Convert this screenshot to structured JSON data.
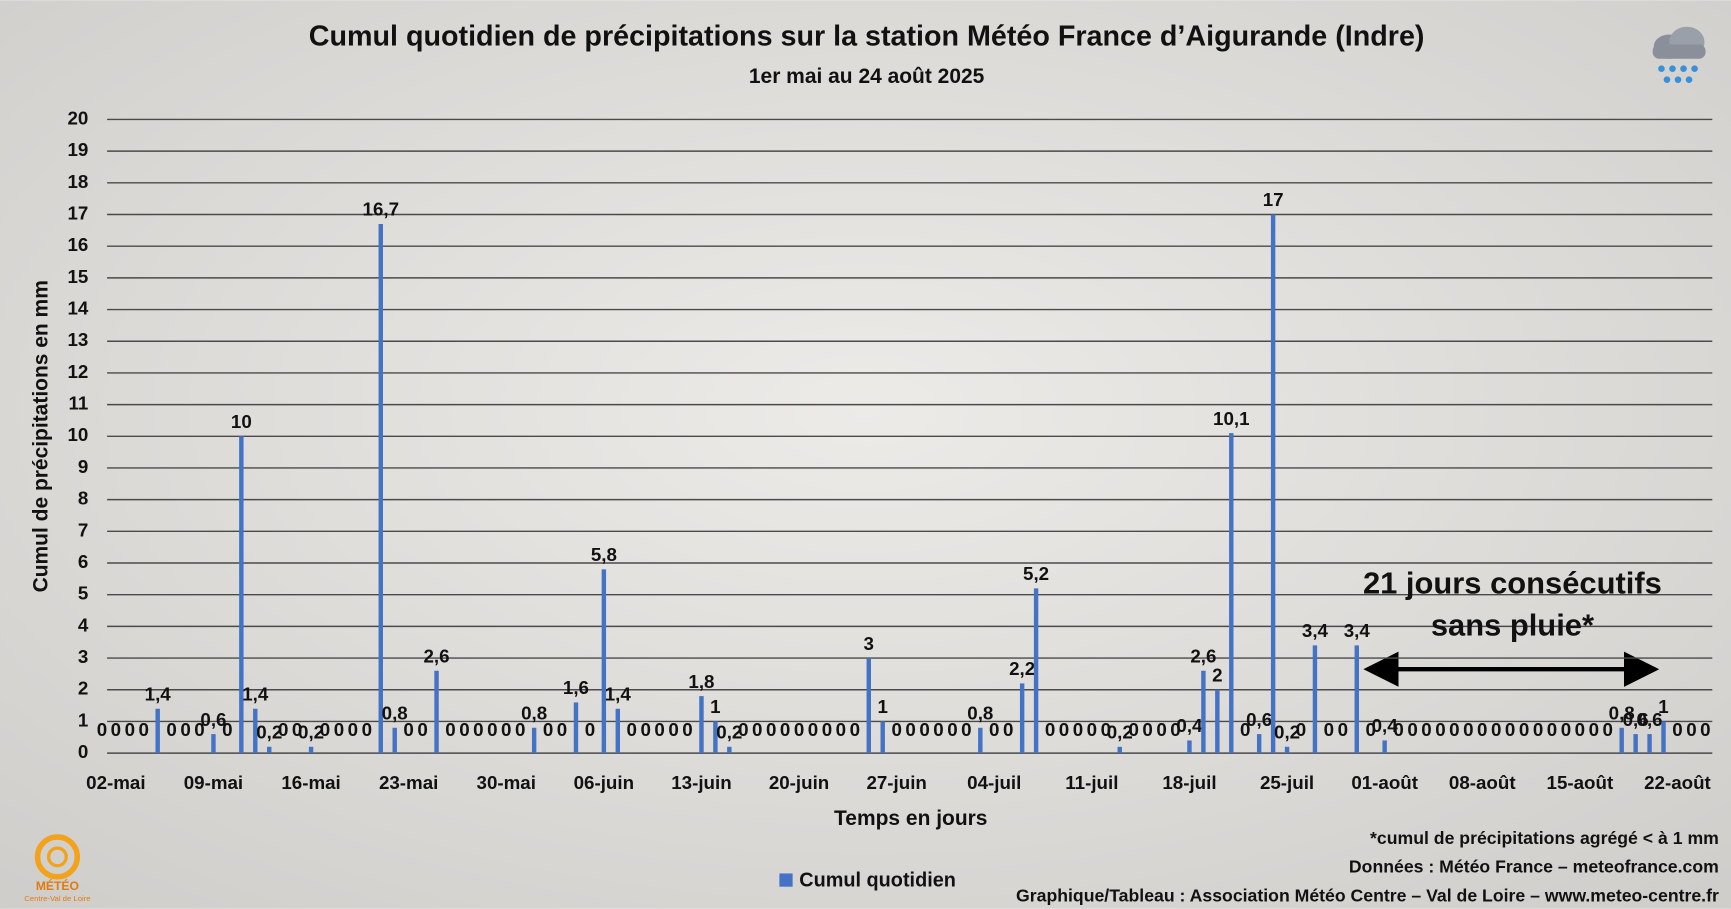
{
  "chart_data": {
    "type": "bar",
    "title": "Cumul quotidien de précipitations sur la station Météo France d’Aigurande (Indre)",
    "subtitle": "1er mai au 24 août 2025",
    "xlabel": "Temps en jours",
    "ylabel": "Cumul de précipitations en mm",
    "categories": [
      null,
      "02-mai",
      null,
      null,
      null,
      null,
      null,
      null,
      "09-mai",
      null,
      null,
      null,
      null,
      null,
      null,
      "16-mai",
      null,
      null,
      null,
      null,
      null,
      null,
      "23-mai",
      null,
      null,
      null,
      null,
      null,
      null,
      "30-mai",
      null,
      null,
      null,
      null,
      null,
      null,
      "06-juin",
      null,
      null,
      null,
      null,
      null,
      null,
      "13-juin",
      null,
      null,
      null,
      null,
      null,
      null,
      "20-juin",
      null,
      null,
      null,
      null,
      null,
      null,
      "27-juin",
      null,
      null,
      null,
      null,
      null,
      null,
      "04-juil",
      null,
      null,
      null,
      null,
      null,
      null,
      "11-juil",
      null,
      null,
      null,
      null,
      null,
      null,
      "18-juil",
      null,
      null,
      null,
      null,
      null,
      null,
      "25-juil",
      null,
      null,
      null,
      null,
      null,
      null,
      "01-août",
      null,
      null,
      null,
      null,
      null,
      null,
      "08-août",
      null,
      null,
      null,
      null,
      null,
      null,
      "15-août",
      null,
      null,
      null,
      null,
      null,
      null,
      "22-août",
      null,
      null
    ],
    "series": [
      {
        "name": "Cumul quotidien",
        "color": "#4472c4",
        "values": [
          0,
          0,
          0,
          0,
          1.4,
          0,
          0,
          0,
          0.6,
          0,
          10,
          1.4,
          0.2,
          0,
          0,
          0.2,
          0,
          0,
          0,
          0,
          16.7,
          0.8,
          0,
          0,
          2.6,
          0,
          0,
          0,
          0,
          0,
          0,
          0.8,
          0,
          0,
          1.6,
          0,
          5.8,
          1.4,
          0,
          0,
          0,
          0,
          0,
          1.8,
          1,
          0.2,
          0,
          0,
          0,
          0,
          0,
          0,
          0,
          0,
          0,
          3,
          1,
          0,
          0,
          0,
          0,
          0,
          0,
          0.8,
          0,
          0,
          2.2,
          5.2,
          0,
          0,
          0,
          0,
          0,
          0.2,
          0,
          0,
          0,
          0,
          0.4,
          2.6,
          2,
          10.1,
          0,
          0.6,
          17,
          0.2,
          0,
          3.4,
          0,
          0,
          3.4,
          0,
          0.4,
          0,
          0,
          0,
          0,
          0,
          0,
          0,
          0,
          0,
          0,
          0,
          0,
          0,
          0,
          0,
          0,
          0.8,
          0.6,
          0.6,
          1,
          0,
          0,
          0
        ],
        "value_labels": [
          "0",
          "0",
          "0",
          "0",
          "1,4",
          "0",
          "0",
          "0",
          "0,6",
          "0",
          "10",
          "1,4",
          "0,2",
          "0",
          "0",
          "0,2",
          "0",
          "0",
          "0",
          "0",
          "16,7",
          "0,8",
          "0",
          "0",
          "2,6",
          "0",
          "0",
          "0",
          "0",
          "0",
          "0",
          "0,8",
          "0",
          "0",
          "1,6",
          "0",
          "5,8",
          "1,4",
          "0",
          "0",
          "0",
          "0",
          "0",
          "1,8",
          "1",
          "0,2",
          "0",
          "0",
          "0",
          "0",
          "0",
          "0",
          "0",
          "0",
          "0",
          "3",
          "1",
          "0",
          "0",
          "0",
          "0",
          "0",
          "0",
          "0,8",
          "0",
          "0",
          "2,2",
          "5,2",
          "0",
          "0",
          "0",
          "0",
          "0",
          "0,2",
          "0",
          "0",
          "0",
          "0",
          "0,4",
          "2,6",
          "2",
          "10,1",
          "0",
          "0,6",
          "17",
          "0,2",
          "0",
          "3,4",
          "0",
          "0",
          "3,4",
          "0",
          "0,4",
          "0",
          "0",
          "0",
          "0",
          "0",
          "0",
          "0",
          "0",
          "0",
          "0",
          "0",
          "0",
          "0",
          "0",
          "0",
          "0",
          "0,8",
          "0,6",
          "0,6",
          "1",
          "0",
          "0",
          "0"
        ]
      }
    ],
    "ylim": [
      0,
      20
    ],
    "yticks": [
      0,
      1,
      2,
      3,
      4,
      5,
      6,
      7,
      8,
      9,
      10,
      11,
      12,
      13,
      14,
      15,
      16,
      17,
      18,
      19,
      20
    ],
    "grid": true,
    "legend": "bottom",
    "annotation": [
      "21 jours consécutifs",
      "sans pluie*"
    ],
    "notes": [
      "*cumul de précipitations agrégé < à 1 mm",
      "Données : Météo France – meteofrance.com",
      "Graphique/Tableau : Association Météo Centre – Val de Loire – www.meteo-centre.fr"
    ],
    "logo": {
      "name": "MÉTÉO",
      "region": "Centre-Val de Loire"
    }
  }
}
